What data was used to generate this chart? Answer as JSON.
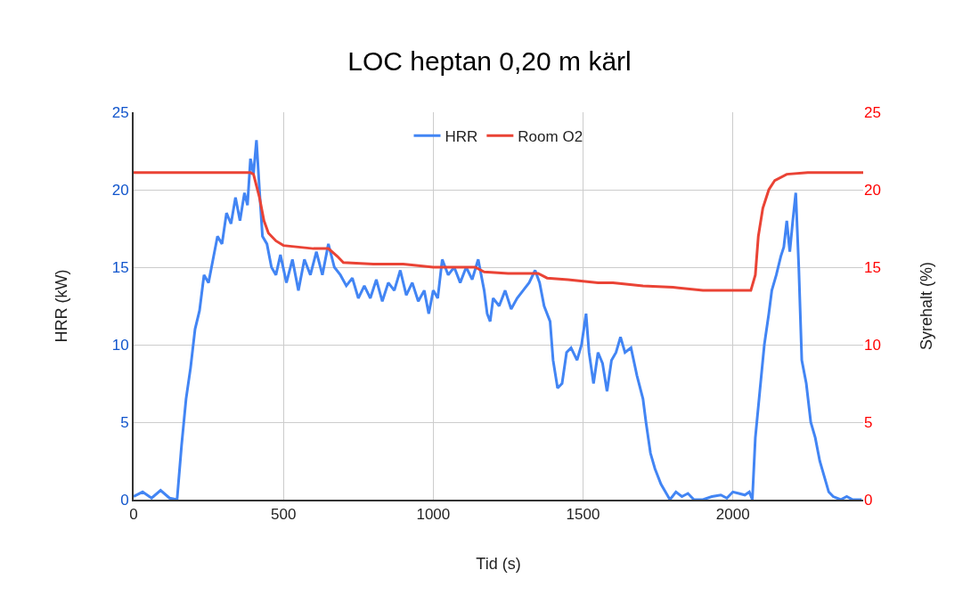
{
  "chart_data": {
    "type": "line",
    "title": "LOC heptan 0,20 m kärl",
    "xlabel": "Tid (s)",
    "ylabel": "HRR (kW)",
    "y2label": "Syrehalt (%)",
    "xlim": [
      0,
      2435
    ],
    "xticks": [
      0,
      500,
      1000,
      1500,
      2000
    ],
    "ylim": [
      0,
      25
    ],
    "yticks": [
      0,
      5,
      10,
      15,
      20,
      25
    ],
    "y2lim": [
      0,
      25
    ],
    "y2ticks": [
      0,
      5,
      10,
      15,
      20,
      25
    ],
    "grid": true,
    "legend": "top",
    "line_style": "solid",
    "marker": "none",
    "series": [
      {
        "name": "HRR",
        "color": "#4285f4",
        "x": [
          0,
          30,
          60,
          90,
          120,
          145,
          160,
          175,
          190,
          205,
          220,
          235,
          250,
          265,
          280,
          295,
          310,
          325,
          340,
          355,
          370,
          380,
          390,
          400,
          410,
          420,
          430,
          445,
          460,
          475,
          490,
          510,
          530,
          550,
          570,
          590,
          610,
          630,
          650,
          670,
          690,
          710,
          730,
          750,
          770,
          790,
          810,
          830,
          850,
          870,
          890,
          910,
          930,
          950,
          970,
          985,
          1000,
          1015,
          1030,
          1050,
          1070,
          1090,
          1110,
          1130,
          1150,
          1170,
          1180,
          1190,
          1200,
          1220,
          1240,
          1260,
          1280,
          1300,
          1320,
          1340,
          1355,
          1370,
          1390,
          1400,
          1415,
          1430,
          1445,
          1460,
          1480,
          1495,
          1510,
          1520,
          1535,
          1550,
          1565,
          1580,
          1595,
          1610,
          1625,
          1640,
          1660,
          1680,
          1700,
          1710,
          1725,
          1740,
          1760,
          1775,
          1790,
          1810,
          1830,
          1850,
          1870,
          1900,
          1930,
          1960,
          1980,
          2000,
          2020,
          2040,
          2055,
          2065,
          2075,
          2090,
          2105,
          2120,
          2130,
          2145,
          2160,
          2170,
          2180,
          2190,
          2200,
          2210,
          2220,
          2230,
          2245,
          2260,
          2275,
          2290,
          2305,
          2320,
          2335,
          2360,
          2380,
          2400,
          2430
        ],
        "values": [
          0.2,
          0.5,
          0.1,
          0.6,
          0.1,
          0,
          3.5,
          6.5,
          8.5,
          11,
          12.2,
          14.5,
          14,
          15.5,
          17,
          16.5,
          18.5,
          17.8,
          19.5,
          18,
          19.8,
          19,
          22,
          21,
          23.2,
          20,
          17,
          16.5,
          15,
          14.5,
          15.8,
          14,
          15.5,
          13.5,
          15.5,
          14.5,
          16,
          14.5,
          16.5,
          15,
          14.5,
          13.8,
          14.3,
          13,
          13.8,
          13,
          14.2,
          12.8,
          14,
          13.5,
          14.8,
          13.2,
          14,
          12.8,
          13.5,
          12,
          13.5,
          13,
          15.5,
          14.5,
          15,
          14,
          15,
          14.2,
          15.5,
          13.5,
          12,
          11.5,
          13,
          12.5,
          13.5,
          12.3,
          13,
          13.5,
          14,
          14.8,
          14,
          12.5,
          11.5,
          9,
          7.2,
          7.5,
          9.5,
          9.8,
          9,
          10,
          12,
          9.5,
          7.5,
          9.5,
          8.8,
          7,
          9,
          9.5,
          10.5,
          9.5,
          9.8,
          8,
          6.5,
          5,
          3,
          2,
          1,
          0.5,
          0,
          0.5,
          0.2,
          0.4,
          0,
          0,
          0.2,
          0.3,
          0.1,
          0.5,
          0.4,
          0.3,
          0.5,
          0,
          4,
          7,
          10,
          12,
          13.5,
          14.5,
          15.7,
          16.3,
          18,
          16,
          18,
          19.8,
          15,
          9,
          7.5,
          5,
          4,
          2.5,
          1.5,
          0.5,
          0.2,
          0,
          0.2,
          0,
          0
        ]
      },
      {
        "name": "Room O2",
        "color": "#ea4335",
        "axis": "y2",
        "x": [
          0,
          100,
          200,
          300,
          390,
          400,
          420,
          435,
          450,
          475,
          500,
          550,
          600,
          650,
          680,
          700,
          800,
          900,
          1000,
          1100,
          1140,
          1170,
          1250,
          1350,
          1380,
          1450,
          1550,
          1600,
          1700,
          1800,
          1900,
          2000,
          2060,
          2075,
          2085,
          2100,
          2120,
          2140,
          2180,
          2250,
          2435
        ],
        "values": [
          21.1,
          21.1,
          21.1,
          21.1,
          21.1,
          21.0,
          19.5,
          18,
          17.2,
          16.7,
          16.4,
          16.3,
          16.2,
          16.2,
          15.7,
          15.3,
          15.2,
          15.2,
          15.0,
          15.0,
          15.0,
          14.7,
          14.6,
          14.6,
          14.3,
          14.2,
          14.0,
          14.0,
          13.8,
          13.7,
          13.5,
          13.5,
          13.5,
          14.5,
          17,
          18.8,
          20,
          20.6,
          21.0,
          21.1,
          21.1
        ]
      }
    ]
  }
}
